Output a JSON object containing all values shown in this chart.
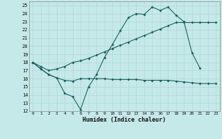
{
  "xlabel": "Humidex (Indice chaleur)",
  "bg_color": "#c5e8e8",
  "grid_color": "#b0d8d8",
  "line_color": "#1a6060",
  "ylim": [
    12,
    25.5
  ],
  "xlim": [
    -0.5,
    23.5
  ],
  "yticks": [
    12,
    13,
    14,
    15,
    16,
    17,
    18,
    19,
    20,
    21,
    22,
    23,
    24,
    25
  ],
  "xticks": [
    0,
    1,
    2,
    3,
    4,
    5,
    6,
    7,
    8,
    9,
    10,
    11,
    12,
    13,
    14,
    15,
    16,
    17,
    18,
    19,
    20,
    21,
    22,
    23
  ],
  "s1_x": [
    0,
    1,
    2,
    3,
    4,
    5,
    6,
    7,
    8,
    9,
    10,
    11,
    12,
    13,
    14,
    15,
    16,
    17,
    18,
    19,
    20,
    21
  ],
  "s1_y": [
    18.0,
    17.2,
    16.5,
    16.1,
    14.2,
    13.8,
    12.2,
    15.0,
    16.5,
    18.6,
    20.2,
    21.9,
    23.5,
    24.0,
    23.9,
    24.8,
    24.4,
    24.8,
    23.8,
    23.0,
    19.2,
    17.3
  ],
  "s2_x": [
    0,
    1,
    2,
    3,
    4,
    5,
    6,
    7,
    8,
    9,
    10,
    11,
    12,
    13,
    14,
    15,
    16,
    17,
    18,
    19,
    20,
    21,
    22,
    23
  ],
  "s2_y": [
    18.0,
    17.5,
    17.0,
    17.2,
    17.5,
    18.0,
    18.2,
    18.5,
    18.9,
    19.3,
    19.7,
    20.1,
    20.5,
    20.9,
    21.3,
    21.7,
    22.1,
    22.5,
    22.9,
    22.9,
    22.9,
    22.9,
    22.9,
    22.9
  ],
  "s3_x": [
    0,
    1,
    2,
    3,
    4,
    5,
    6,
    7,
    8,
    9,
    10,
    11,
    12,
    13,
    14,
    15,
    16,
    17,
    18,
    19,
    20,
    21,
    22,
    23
  ],
  "s3_y": [
    18.0,
    17.2,
    16.5,
    16.1,
    15.8,
    15.7,
    16.0,
    16.0,
    16.0,
    16.0,
    15.9,
    15.9,
    15.9,
    15.9,
    15.8,
    15.8,
    15.8,
    15.8,
    15.7,
    15.6,
    15.5,
    15.4,
    15.4,
    15.4
  ]
}
